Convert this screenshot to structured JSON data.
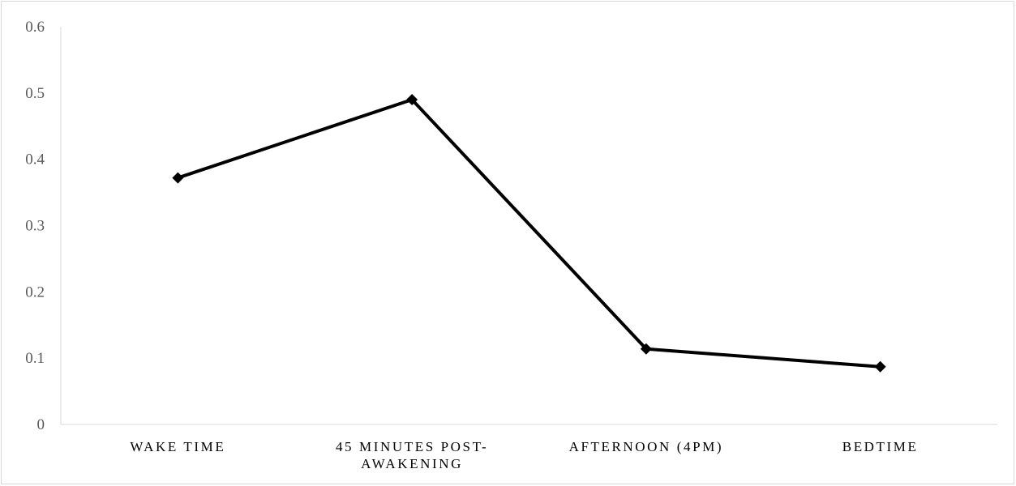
{
  "chart_data": {
    "type": "line",
    "title": "",
    "xlabel": "",
    "ylabel": "",
    "categories": [
      [
        "WAKE TIME"
      ],
      [
        "45 MINUTES POST-",
        "AWAKENING"
      ],
      [
        "AFTERNOON (4PM)"
      ],
      [
        "BEDTIME"
      ]
    ],
    "series": [
      {
        "values": [
          0.372,
          0.49,
          0.114,
          0.087
        ],
        "color": "#000000",
        "marker": "diamond"
      }
    ],
    "ylim": [
      0,
      0.6
    ],
    "yticks": [
      "0",
      "0.1",
      "0.2",
      "0.3",
      "0.4",
      "0.5",
      "0.6"
    ],
    "grid": false,
    "legend": "none"
  }
}
